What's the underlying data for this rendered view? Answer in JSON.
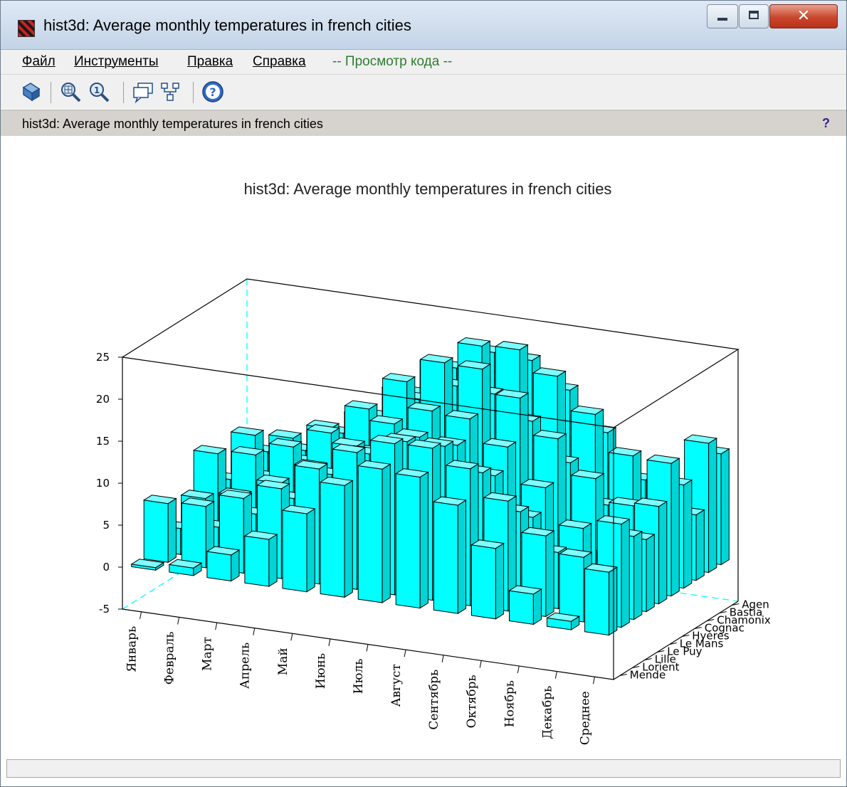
{
  "window": {
    "title": "hist3d: Average monthly temperatures in french cities"
  },
  "menu": {
    "items": [
      "Файл",
      "Инструменты",
      "Правка",
      "Справка"
    ],
    "code_view": "-- Просмотр кода --"
  },
  "toolbar": {
    "icons": [
      "rotate-icon",
      "zoom-in-icon",
      "zoom-reset-icon",
      "datatip-icon",
      "graphic-editor-icon",
      "help-icon"
    ]
  },
  "infobar": {
    "text": "hist3d: Average monthly temperatures in french cities",
    "help": "?"
  },
  "colors": {
    "bar_top": "#7dffff",
    "bar_front": "#00ffff",
    "bar_side": "#00d4d4",
    "hidden_axis": "#00ffff"
  },
  "chart_data": {
    "type": "bar3d",
    "title": "hist3d: Average monthly temperatures in french cities",
    "x_categories": [
      "Январь",
      "Февраль",
      "Март",
      "Апрель",
      "Май",
      "Июнь",
      "Июль",
      "Август",
      "Сентябрь",
      "Октябрь",
      "Ноябрь",
      "Декабрь",
      "Среднее"
    ],
    "y_categories": [
      "Mende",
      "Lorient",
      "Lille",
      "Le Puy",
      "Le Mans",
      "Hyères",
      "Cognac",
      "Chamonix",
      "Bastia",
      "Agen"
    ],
    "zlim": [
      -5,
      25
    ],
    "z_ticks": [
      -5,
      0,
      5,
      10,
      15,
      20,
      25
    ],
    "grid": false,
    "values": [
      [
        0.3,
        7.0,
        3.1,
        1.4,
        4.8,
        9.2,
        5.2,
        -1.0,
        8.6,
        5.7
      ],
      [
        0.9,
        7.3,
        3.9,
        1.9,
        5.7,
        9.7,
        6.1,
        0.4,
        8.9,
        6.5
      ],
      [
        3.1,
        8.9,
        6.1,
        4.6,
        7.9,
        11.3,
        8.6,
        3.6,
        10.7,
        9.2
      ],
      [
        5.6,
        10.7,
        8.6,
        6.9,
        10.4,
        13.6,
        11.0,
        7.6,
        12.9,
        11.8
      ],
      [
        9.3,
        13.7,
        12.1,
        10.8,
        13.6,
        17.1,
        14.5,
        11.1,
        16.5,
        15.2
      ],
      [
        13.3,
        16.3,
        15.2,
        14.3,
        16.9,
        21.0,
        18.0,
        14.4,
        20.3,
        18.9
      ],
      [
        15.9,
        18.0,
        17.3,
        16.9,
        19.1,
        23.9,
        20.2,
        16.6,
        23.1,
        21.4
      ],
      [
        15.6,
        18.1,
        17.4,
        16.6,
        18.8,
        23.8,
        19.9,
        15.8,
        23.3,
        21.1
      ],
      [
        12.9,
        16.3,
        14.9,
        13.6,
        16.1,
        21.0,
        17.3,
        12.9,
        20.8,
        18.2
      ],
      [
        8.4,
        13.1,
        10.9,
        9.3,
        11.9,
        16.8,
        13.0,
        8.5,
        16.9,
        13.8
      ],
      [
        3.6,
        9.6,
        6.7,
        4.6,
        7.7,
        12.7,
        8.6,
        3.3,
        12.6,
        8.8
      ],
      [
        1.0,
        7.7,
        3.9,
        2.0,
        5.3,
        10.1,
        5.9,
        -0.1,
        10.0,
        6.3
      ],
      [
        7.5,
        12.3,
        9.9,
        8.6,
        11.6,
        15.8,
        12.3,
        7.8,
        15.4,
        13.2
      ]
    ]
  }
}
